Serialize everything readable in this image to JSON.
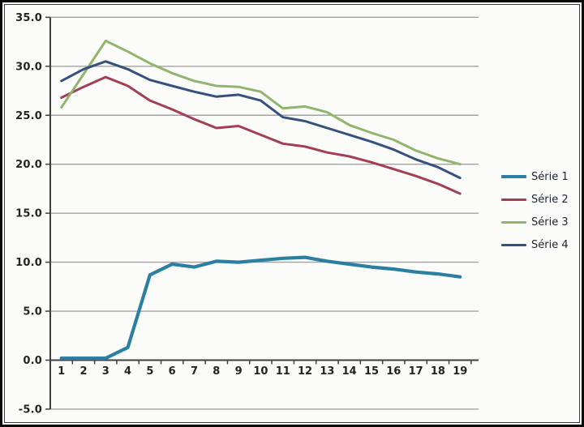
{
  "window": {
    "background": "#fbfbf9",
    "frame_border_color": "#070707"
  },
  "chart_data": {
    "type": "line",
    "x_labels": [
      "1",
      "2",
      "3",
      "4",
      "5",
      "6",
      "7",
      "8",
      "9",
      "10",
      "11",
      "12",
      "13",
      "14",
      "15",
      "16",
      "17",
      "18",
      "19"
    ],
    "y_ticks": [
      "35.0",
      "30.0",
      "25.0",
      "20.0",
      "15.0",
      "10.0",
      "5.0",
      "0.0",
      "-5.0"
    ],
    "y_tick_values": [
      35,
      30,
      25,
      20,
      15,
      10,
      5,
      0,
      -5
    ],
    "ylim": [
      -5,
      35
    ],
    "xlabel": "",
    "ylabel": "",
    "title": "",
    "grid": true,
    "legend_position": "right",
    "series": [
      {
        "name": "Série 1",
        "color": "#2b7fa3",
        "width": 4.2,
        "values": [
          0.2,
          0.2,
          0.2,
          1.3,
          8.7,
          9.8,
          9.5,
          10.1,
          10.0,
          10.2,
          10.4,
          10.5,
          10.1,
          9.8,
          9.5,
          9.3,
          9.0,
          8.8,
          8.5
        ]
      },
      {
        "name": "Série 2",
        "color": "#a23f55",
        "width": 3,
        "values": [
          26.8,
          27.9,
          28.9,
          28.0,
          26.5,
          25.6,
          24.6,
          23.7,
          23.9,
          23.0,
          22.1,
          21.8,
          21.2,
          20.8,
          20.2,
          19.5,
          18.8,
          18.0,
          17.0
        ]
      },
      {
        "name": "Série 3",
        "color": "#92b56e",
        "width": 3,
        "values": [
          25.8,
          29.2,
          32.6,
          31.5,
          30.3,
          29.3,
          28.5,
          28.0,
          27.9,
          27.4,
          25.7,
          25.9,
          25.3,
          24.0,
          23.2,
          22.5,
          21.4,
          20.6,
          20.0
        ]
      },
      {
        "name": "Série 4",
        "color": "#36517e",
        "width": 3,
        "values": [
          28.5,
          29.7,
          30.5,
          29.7,
          28.6,
          28.0,
          27.4,
          26.9,
          27.1,
          26.5,
          24.8,
          24.4,
          23.7,
          23.0,
          22.3,
          21.5,
          20.5,
          19.7,
          18.6
        ]
      }
    ],
    "colors": {
      "gridline": "#a2a2a2",
      "axis": "#3f3f3f",
      "tick_label": "#242424",
      "legend_text": "#212637"
    }
  }
}
